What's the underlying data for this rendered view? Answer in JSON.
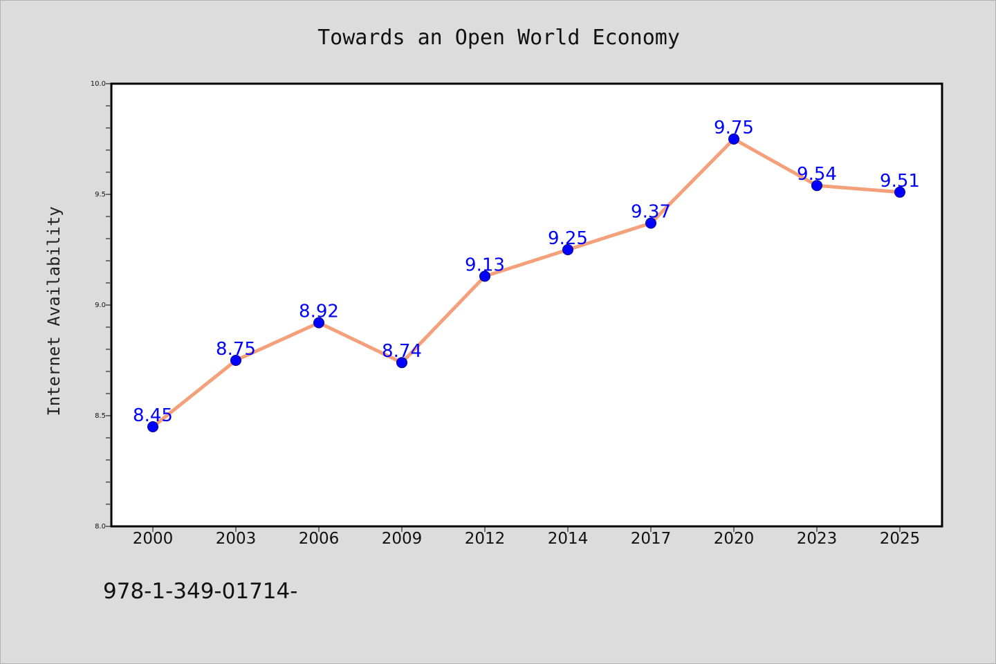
{
  "chart_data": {
    "type": "line",
    "title": "Towards an Open World Economy",
    "xlabel": "",
    "ylabel": "Internet Availability",
    "categories": [
      "2000",
      "2003",
      "2006",
      "2009",
      "2012",
      "2014",
      "2017",
      "2020",
      "2023",
      "2025"
    ],
    "series": [
      {
        "values": [
          8.45,
          8.75,
          8.92,
          8.74,
          9.13,
          9.25,
          9.37,
          9.75,
          9.54,
          9.51
        ],
        "data_labels": [
          "8.45",
          "8.75",
          "8.92",
          "8.74",
          "9.13",
          "9.25",
          "9.37",
          "9.75",
          "9.54",
          "9.51"
        ],
        "line_color": "#f4a07a",
        "marker_color": "#0000ff"
      }
    ],
    "ylim": [
      8.0,
      10.0
    ],
    "yticks": [
      "8.0",
      "8.5",
      "9.0",
      "9.5",
      "10.0"
    ],
    "grid": false,
    "legend": "none"
  },
  "footer": {
    "text": "978-1-349-01714-"
  },
  "colors": {
    "background": "#dcdcdc",
    "plot_background": "#ffffff",
    "line": "#f4a07a",
    "marker": "#0000ff",
    "data_label": "#0000ff"
  }
}
